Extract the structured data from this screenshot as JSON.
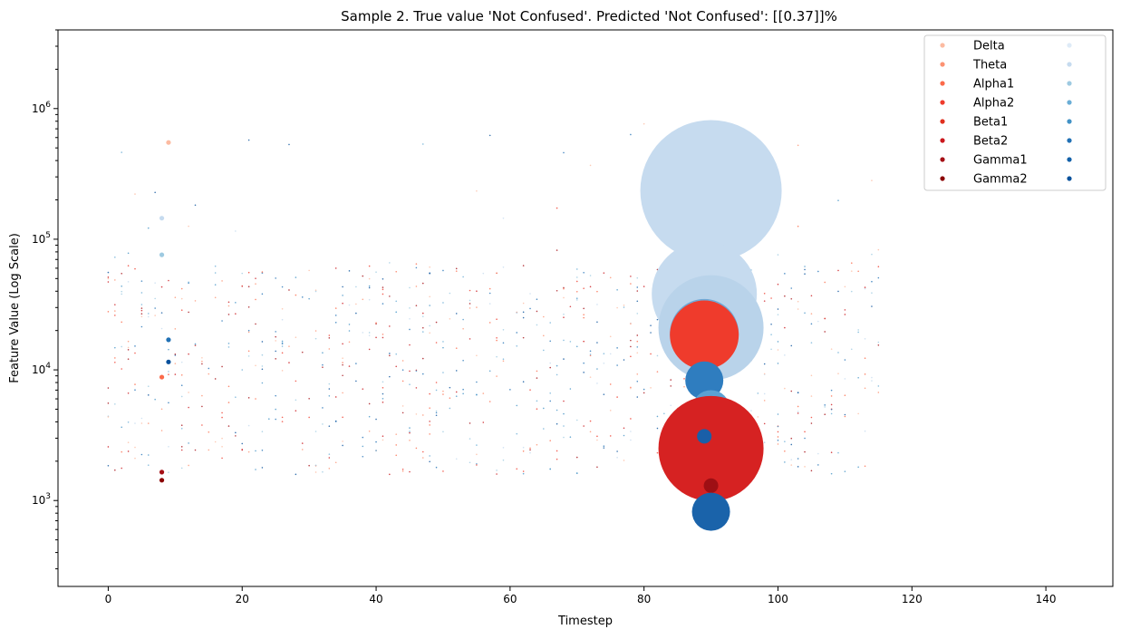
{
  "chart_data": {
    "type": "scatter",
    "title": "Sample 2. True value 'Not Confused'. Predicted 'Not Confused': [[0.37]]%",
    "xlabel": "Timestep",
    "ylabel": "Feature Value (Log Scale)",
    "xlim": [
      -7.5,
      150
    ],
    "ylim": [
      220,
      4000000
    ],
    "yscale": "log",
    "x_ticks": [
      0,
      20,
      40,
      60,
      80,
      100,
      120,
      140
    ],
    "y_ticks": [
      {
        "value": 1000,
        "base": "10",
        "exp": "3"
      },
      {
        "value": 10000,
        "base": "10",
        "exp": "4"
      },
      {
        "value": 100000,
        "base": "10",
        "exp": "5"
      },
      {
        "value": 1000000,
        "base": "10",
        "exp": "6"
      }
    ],
    "grid": false,
    "legend": {
      "placement": "top-right",
      "columns": 2,
      "left_column": [
        {
          "label": "Delta",
          "color": "#fcbba1"
        },
        {
          "label": "Theta",
          "color": "#fc9272"
        },
        {
          "label": "Alpha1",
          "color": "#fb6a4a"
        },
        {
          "label": "Alpha2",
          "color": "#ef3b2c"
        },
        {
          "label": "Beta1",
          "color": "#e0301e"
        },
        {
          "label": "Beta2",
          "color": "#cb181d"
        },
        {
          "label": "Gamma1",
          "color": "#a50f15"
        },
        {
          "label": "Gamma2",
          "color": "#8b0000"
        }
      ],
      "right_column": [
        {
          "label": "",
          "color": "#deebf7"
        },
        {
          "label": "",
          "color": "#c6dbef"
        },
        {
          "label": "",
          "color": "#9ecae1"
        },
        {
          "label": "",
          "color": "#6baed6"
        },
        {
          "label": "",
          "color": "#4292c6"
        },
        {
          "label": "",
          "color": "#2171b5"
        },
        {
          "label": "",
          "color": "#1361a9"
        },
        {
          "label": "",
          "color": "#08519c"
        }
      ]
    },
    "large_markers": [
      {
        "x": 90,
        "y": 235000,
        "color": "#c6dbef",
        "size": "huge"
      },
      {
        "x": 89,
        "y": 38000,
        "color": "#c6dbef",
        "size": "very large"
      },
      {
        "x": 90,
        "y": 21000,
        "color": "#b9d3ea",
        "size": "very large"
      },
      {
        "x": 89,
        "y": 19000,
        "color": "#6fa8d6",
        "size": "large"
      },
      {
        "x": 89,
        "y": 18500,
        "color": "#ef3b2c",
        "size": "large"
      },
      {
        "x": 89,
        "y": 8300,
        "color": "#2f7dbf",
        "size": "medium"
      },
      {
        "x": 90,
        "y": 5000,
        "color": "#5aa1d3",
        "size": "medium"
      },
      {
        "x": 89,
        "y": 3700,
        "color": "#1f6db3",
        "size": "small"
      },
      {
        "x": 90,
        "y": 2500,
        "color": "#d62222",
        "size": "very large"
      },
      {
        "x": 89,
        "y": 3100,
        "color": "#1a5fa8",
        "size": "tiny"
      },
      {
        "x": 90,
        "y": 1300,
        "color": "#9e0f14",
        "size": "tiny"
      },
      {
        "x": 90,
        "y": 820,
        "color": "#1a63aa",
        "size": "medium"
      }
    ],
    "small_markers": [
      {
        "x": 9,
        "y": 550000,
        "color": "#fcbba1"
      },
      {
        "x": 8,
        "y": 145000,
        "color": "#c6dbef"
      },
      {
        "x": 8,
        "y": 76000,
        "color": "#9ecae1"
      },
      {
        "x": 9,
        "y": 17000,
        "color": "#2171b5"
      },
      {
        "x": 8,
        "y": 8800,
        "color": "#fb6a4a"
      },
      {
        "x": 9,
        "y": 11500,
        "color": "#08519c"
      },
      {
        "x": 8,
        "y": 1650,
        "color": "#a50f15"
      },
      {
        "x": 8,
        "y": 1430,
        "color": "#8b0000"
      }
    ]
  }
}
